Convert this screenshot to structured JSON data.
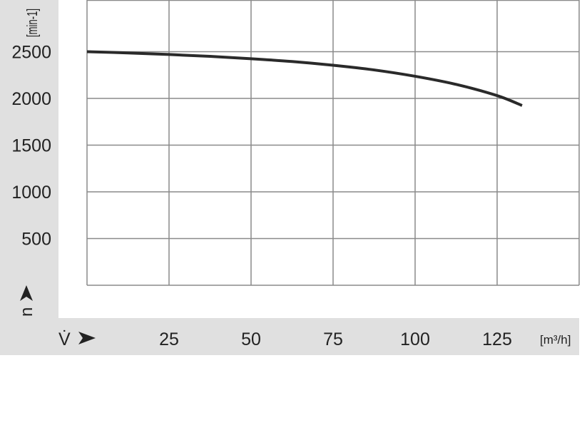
{
  "chart_data": {
    "type": "line",
    "title": "",
    "xlabel": "V̇",
    "xunit": "[m³/h]",
    "ylabel": "n",
    "yunit": "[min-1]",
    "xlim": [
      0,
      150
    ],
    "ylim": [
      0,
      3000
    ],
    "xticks": [
      25,
      50,
      75,
      100,
      125
    ],
    "yticks": [
      500,
      1000,
      1500,
      2000,
      2500
    ],
    "grid": true,
    "series": [
      {
        "x": [
          0,
          12.5,
          25,
          37.5,
          50,
          62.5,
          75,
          87.5,
          100,
          112.5,
          125,
          132.6
        ],
        "y": [
          2500,
          2487,
          2470,
          2450,
          2425,
          2395,
          2355,
          2305,
          2237,
          2150,
          2030,
          1924
        ]
      }
    ],
    "colors": {
      "line": "#2a2a2a",
      "grid": "#8a8a8a",
      "band": "#e0e0e0",
      "text": "#222222"
    }
  }
}
